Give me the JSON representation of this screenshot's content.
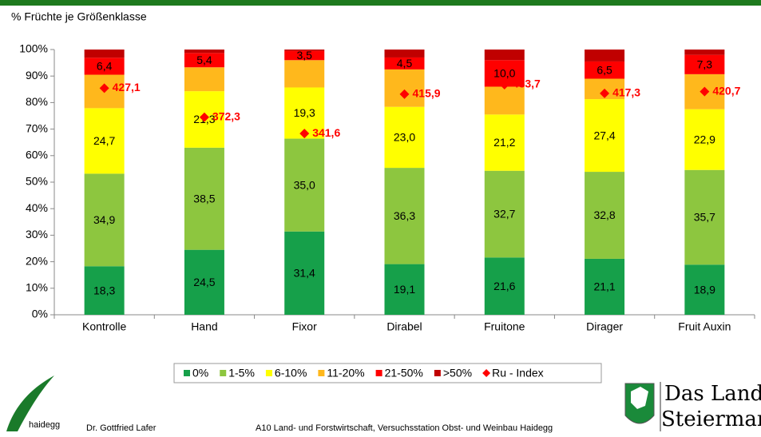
{
  "chart_data": {
    "type": "stacked_bar",
    "ylabel": "% Früchte je Größenklasse",
    "categories": [
      "Kontrolle",
      "Hand",
      "Fixor",
      "Dirabel",
      "Fruitone",
      "Dirager",
      "Fruit Auxin"
    ],
    "ylim": [
      0,
      100
    ],
    "yticks": [
      {
        "value": 0,
        "label": "0%"
      },
      {
        "value": 10,
        "label": "10%"
      },
      {
        "value": 20,
        "label": "20%"
      },
      {
        "value": 30,
        "label": "30%"
      },
      {
        "value": 40,
        "label": "40%"
      },
      {
        "value": 50,
        "label": "50%"
      },
      {
        "value": 60,
        "label": "60%"
      },
      {
        "value": 70,
        "label": "70%"
      },
      {
        "value": 80,
        "label": "80%"
      },
      {
        "value": 90,
        "label": "90%"
      },
      {
        "value": 100,
        "label": "100%"
      }
    ],
    "y2lim": [
      0,
      500
    ],
    "grid": false,
    "legend": "bottom",
    "series": [
      {
        "name": "0%",
        "color": "#16a04a",
        "values": [
          18.3,
          24.5,
          31.4,
          19.1,
          21.6,
          21.1,
          18.9
        ],
        "value_labels": [
          "18,3",
          "24,5",
          "31,4",
          "19,1",
          "21,6",
          "21,1",
          "18,9"
        ]
      },
      {
        "name": "1-5%",
        "color": "#8dc63f",
        "values": [
          34.9,
          38.5,
          35.0,
          36.3,
          32.7,
          32.8,
          35.7
        ],
        "value_labels": [
          "34,9",
          "38,5",
          "35,0",
          "36,3",
          "32,7",
          "32,8",
          "35,7"
        ]
      },
      {
        "name": "6-10%",
        "color": "#ffff00",
        "values": [
          24.7,
          21.3,
          19.3,
          23.0,
          21.2,
          27.4,
          22.9
        ],
        "value_labels": [
          "24,7",
          "21,3",
          "19,3",
          "23,0",
          "21,2",
          "27,4",
          "22,9"
        ]
      },
      {
        "name": "11-20%",
        "color": "#ffb81c",
        "values": [
          12.6,
          9.0,
          10.3,
          14.1,
          10.5,
          7.7,
          13.2
        ],
        "value_labels": [
          null,
          null,
          null,
          null,
          null,
          null,
          null
        ]
      },
      {
        "name": "21-50%",
        "color": "#ff0000",
        "values": [
          6.4,
          5.4,
          3.5,
          4.5,
          10.0,
          6.5,
          7.3
        ],
        "value_labels": [
          "6,4",
          "5,4",
          "3,5",
          "4,5",
          "10,0",
          "6,5",
          "7,3"
        ]
      },
      {
        "name": ">50%",
        "color": "#c00000",
        "values": [
          3.1,
          1.3,
          0.5,
          3.0,
          4.0,
          4.5,
          2.0
        ],
        "value_labels": [
          null,
          null,
          null,
          null,
          null,
          null,
          null
        ]
      },
      {
        "name": "Ru - Index",
        "color": "#ff0000",
        "axis": "y2",
        "marker": "diamond",
        "values": [
          427.1,
          372.3,
          341.6,
          415.9,
          433.7,
          417.3,
          420.7
        ],
        "value_labels": [
          "427,1",
          "372,3",
          "341,6",
          "415,9",
          "433,7",
          "417,3",
          "420,7"
        ]
      }
    ]
  },
  "footer": {
    "logo": "haidegg",
    "author": "Dr. Gottfried Lafer",
    "institution": "A10 Land- und Forstwirtschaft, Versuchsstation Obst- und Weinbau Haidegg",
    "brand_line1": "Das Land",
    "brand_line2": "Steiermark"
  }
}
